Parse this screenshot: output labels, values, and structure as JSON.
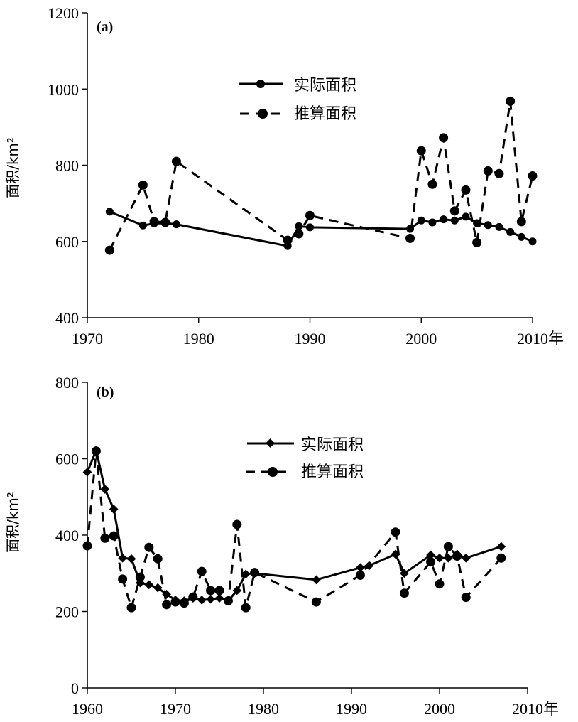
{
  "chart_data": [
    {
      "type": "line",
      "panel_label": "(a)",
      "ylabel": "面积/km²",
      "x_unit": "年",
      "xlim": [
        1970,
        2010
      ],
      "ylim": [
        400,
        1200
      ],
      "x_ticks": [
        1970,
        1980,
        1990,
        2000,
        2010
      ],
      "x_tick_labels": [
        "1970",
        "1980",
        "1990",
        "2000",
        "2010年"
      ],
      "y_ticks": [
        400,
        600,
        800,
        1000,
        1200
      ],
      "y_tick_labels": [
        "400",
        "600",
        "800",
        "1000",
        "1200"
      ],
      "legend_position": "upper-center",
      "series": [
        {
          "name": "实际面积",
          "style": "solid",
          "marker": "circle",
          "x": [
            1972,
            1975,
            1976,
            1977,
            1978,
            1988,
            1989,
            1990,
            1999,
            2000,
            2001,
            2002,
            2003,
            2004,
            2005,
            2006,
            2007,
            2008,
            2009,
            2010
          ],
          "values": [
            678,
            642,
            647,
            648,
            645,
            588,
            640,
            637,
            633,
            655,
            650,
            658,
            655,
            665,
            648,
            643,
            638,
            625,
            612,
            600
          ]
        },
        {
          "name": "推算面积",
          "style": "dashed",
          "marker": "circle",
          "x": [
            1972,
            1975,
            1976,
            1977,
            1978,
            1988,
            1989,
            1990,
            1999,
            2000,
            2001,
            2002,
            2003,
            2004,
            2005,
            2006,
            2007,
            2008,
            2009,
            2010
          ],
          "values": [
            577,
            748,
            652,
            650,
            810,
            603,
            620,
            668,
            608,
            838,
            750,
            872,
            680,
            735,
            597,
            785,
            778,
            968,
            652,
            772
          ]
        }
      ]
    },
    {
      "type": "line",
      "panel_label": "(b)",
      "ylabel": "面积/km²",
      "x_unit": "年",
      "xlim": [
        1960,
        2010
      ],
      "ylim": [
        0,
        800
      ],
      "x_ticks": [
        1960,
        1970,
        1980,
        1990,
        2000,
        2010
      ],
      "x_tick_labels": [
        "1960",
        "1970",
        "1980",
        "1990",
        "2000",
        "2010年"
      ],
      "y_ticks": [
        0,
        200,
        400,
        600,
        800
      ],
      "y_tick_labels": [
        "0",
        "200",
        "400",
        "600",
        "800"
      ],
      "legend_position": "upper-center",
      "series": [
        {
          "name": "实际面积",
          "style": "solid",
          "marker": "diamond",
          "x": [
            1960,
            1961,
            1962,
            1963,
            1964,
            1965,
            1966,
            1967,
            1968,
            1969,
            1970,
            1971,
            1972,
            1973,
            1974,
            1975,
            1976,
            1977,
            1978,
            1979,
            1986,
            1991,
            1992,
            1995,
            1996,
            1999,
            2000,
            2001,
            2002,
            2003,
            2007
          ],
          "values": [
            565,
            622,
            520,
            468,
            340,
            338,
            275,
            270,
            262,
            245,
            230,
            228,
            235,
            230,
            232,
            235,
            228,
            255,
            298,
            300,
            283,
            315,
            320,
            350,
            300,
            348,
            340,
            340,
            350,
            340,
            370
          ]
        },
        {
          "name": "推算面积",
          "style": "dashed",
          "marker": "circle",
          "x": [
            1960,
            1961,
            1962,
            1963,
            1964,
            1965,
            1966,
            1967,
            1968,
            1969,
            1970,
            1971,
            1972,
            1973,
            1974,
            1975,
            1976,
            1977,
            1978,
            1979,
            1986,
            1991,
            1995,
            1996,
            1999,
            2000,
            2001,
            2002,
            2003,
            2007
          ],
          "values": [
            372,
            620,
            392,
            398,
            285,
            210,
            290,
            368,
            338,
            218,
            225,
            222,
            238,
            305,
            255,
            255,
            228,
            428,
            210,
            302,
            225,
            295,
            408,
            248,
            330,
            272,
            370,
            345,
            237,
            340
          ]
        }
      ]
    }
  ]
}
